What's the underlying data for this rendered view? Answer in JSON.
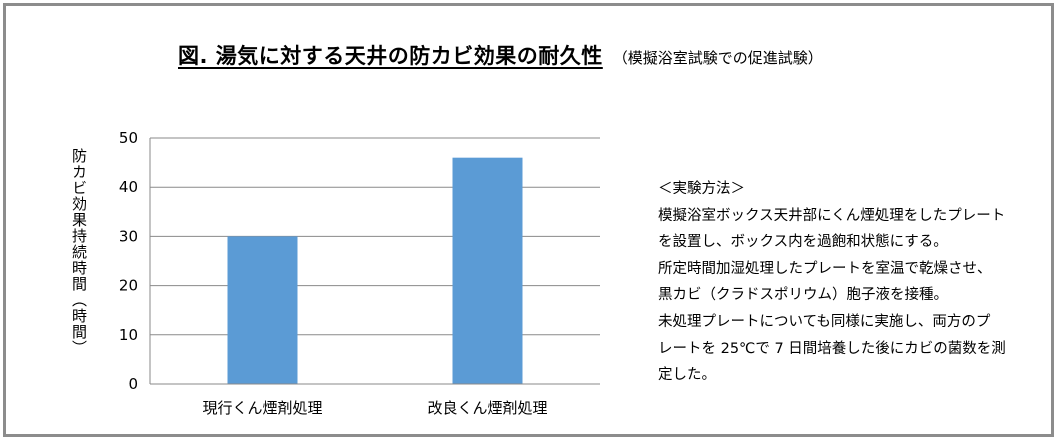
{
  "title": "図.  湯気に対する天井の防カビ効果の耐久性",
  "subtitle": "（模擬浴室試験での促進試験）",
  "chart_data": {
    "type": "bar",
    "categories": [
      "現行くん煙剤処理",
      "改良くん煙剤処理"
    ],
    "values": [
      30,
      46
    ],
    "ylabel": "防カビ効果持続時間（時間）",
    "ylim": [
      0,
      50
    ],
    "yticks": [
      0,
      10,
      20,
      30,
      40,
      50
    ],
    "grid": true,
    "bar_color": "#5b9bd5"
  },
  "method": {
    "heading": "＜実験方法＞",
    "lines": [
      "模擬浴室ボックス天井部にくん煙処理をしたプレート",
      "を設置し、ボックス内を過飽和状態にする。",
      "所定時間加湿処理したプレートを室温で乾燥させ、",
      "黒カビ（クラドスポリウム）胞子液を接種。",
      "未処理プレートについても同様に実施し、両方のプ",
      "レートを 25℃で 7 日間培養した後にカビの菌数を測",
      "定した。"
    ]
  }
}
